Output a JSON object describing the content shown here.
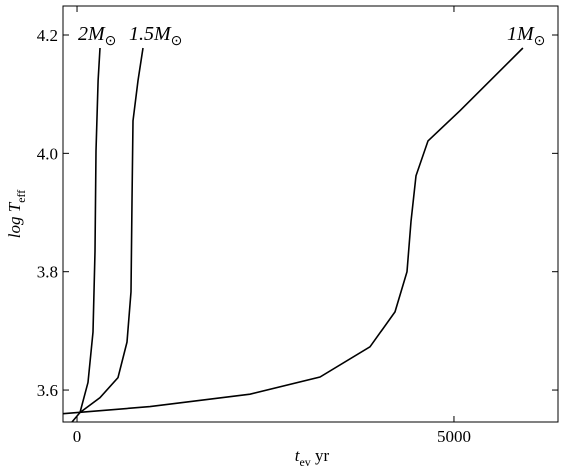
{
  "chart_data": {
    "type": "line",
    "xlabel": {
      "main": "t",
      "sub": "ev",
      "tail": " yr"
    },
    "ylabel": {
      "main": "log T",
      "sub": "eff"
    },
    "xlim": [
      -186,
      6380
    ],
    "ylim": [
      3.546,
      4.249
    ],
    "xticks": [
      0,
      5000
    ],
    "yticks": [
      3.6,
      3.8,
      {
        "value": 4.0,
        "label": "4.0"
      },
      4.2
    ],
    "series": [
      {
        "name": {
          "main": "2M",
          "sub": "⊙"
        },
        "color": "#000000",
        "x": [
          -66,
          40,
          146,
          212,
          239,
          252,
          279,
          305
        ],
        "values": [
          3.546,
          3.562,
          3.613,
          3.698,
          3.834,
          4.004,
          4.123,
          4.178
        ]
      },
      {
        "name": {
          "main": "1.5M",
          "sub": "⊙"
        },
        "color": "#000000",
        "x": [
          40,
          305,
          544,
          663,
          716,
          729,
          743,
          809,
          875
        ],
        "values": [
          3.562,
          3.587,
          3.621,
          3.681,
          3.766,
          3.919,
          4.055,
          4.123,
          4.178
        ]
      },
      {
        "name": {
          "main": "1M",
          "sub": "⊙"
        },
        "color": "#000000",
        "x": [
          -186,
          968,
          2294,
          3223,
          3886,
          4218,
          4377,
          4430,
          4496,
          4655,
          5080,
          5915
        ],
        "values": [
          3.56,
          3.572,
          3.593,
          3.622,
          3.673,
          3.732,
          3.8,
          3.885,
          3.962,
          4.021,
          4.072,
          4.178
        ]
      }
    ]
  }
}
